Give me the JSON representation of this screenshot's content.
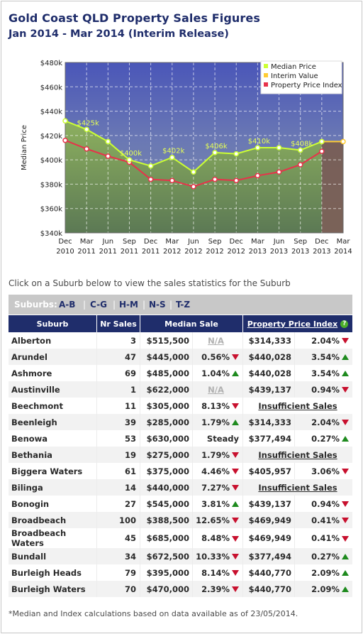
{
  "header": {
    "title": "Gold Coast QLD Property Sales Figures",
    "subtitle": "Jan 2014 - Mar 2014 (Interim Release)"
  },
  "chart_data": {
    "type": "line",
    "ylabel": "Median Price",
    "ylim": [
      340000,
      480000
    ],
    "yticks": [
      "$340k",
      "$360k",
      "$380k",
      "$400k",
      "$420k",
      "$440k",
      "$460k",
      "$480k"
    ],
    "xticks": [
      [
        "Dec",
        "2010"
      ],
      [
        "Mar",
        "2011"
      ],
      [
        "Jun",
        "2011"
      ],
      [
        "Sep",
        "2011"
      ],
      [
        "Dec",
        "2011"
      ],
      [
        "Mar",
        "2012"
      ],
      [
        "Jun",
        "2012"
      ],
      [
        "Sep",
        "2012"
      ],
      [
        "Dec",
        "2012"
      ],
      [
        "Mar",
        "2013"
      ],
      [
        "Jun",
        "2013"
      ],
      [
        "Sep",
        "2013"
      ],
      [
        "Dec",
        "2013"
      ],
      [
        "Mar",
        "2014"
      ]
    ],
    "legend": {
      "position": "top-right",
      "entries": [
        "Median Price",
        "Interim Value",
        "Property Price Index"
      ]
    },
    "series": [
      {
        "name": "Median Price",
        "color": "#ccff33",
        "values": [
          432000,
          425000,
          415000,
          400000,
          395000,
          402000,
          390000,
          406000,
          405000,
          410000,
          410000,
          408000,
          415000,
          null
        ]
      },
      {
        "name": "Interim Value",
        "color": "#ffcc33",
        "values": [
          null,
          null,
          null,
          null,
          null,
          null,
          null,
          null,
          null,
          null,
          null,
          null,
          415000,
          415000
        ]
      },
      {
        "name": "Property Price Index",
        "color": "#e8324a",
        "values": [
          416000,
          409000,
          403000,
          398000,
          384000,
          383000,
          378000,
          384000,
          383000,
          387000,
          390000,
          396000,
          407000,
          null
        ]
      }
    ],
    "data_labels": [
      {
        "index": 1,
        "text": "$425k"
      },
      {
        "index": 3,
        "text": "$400k"
      },
      {
        "index": 5,
        "text": "$402k"
      },
      {
        "index": 7,
        "text": "$406k"
      },
      {
        "index": 9,
        "text": "$410k"
      },
      {
        "index": 11,
        "text": "$408k"
      }
    ],
    "grid": true,
    "interim_start_index": 12
  },
  "instructions": "Click on a Suburb below to view the sales statistics for the Suburb",
  "suburb_nav": {
    "label": "Suburbs:",
    "links": [
      "A-B",
      "C-G",
      "H-M",
      "N-S",
      "T-Z"
    ]
  },
  "table": {
    "headers": {
      "suburb": "Suburb",
      "nr_sales": "Nr Sales",
      "median_sale": "Median Sale",
      "ppi": "Property Price Index"
    },
    "rows": [
      {
        "suburb": "Alberton",
        "nr": "3",
        "median": "$515,500",
        "mchg": "N/A",
        "mdir": "na",
        "ppi": "$314,333",
        "pchg": "2.04%",
        "pdir": "down"
      },
      {
        "suburb": "Arundel",
        "nr": "47",
        "median": "$445,000",
        "mchg": "0.56%",
        "mdir": "down",
        "ppi": "$440,028",
        "pchg": "3.54%",
        "pdir": "up"
      },
      {
        "suburb": "Ashmore",
        "nr": "69",
        "median": "$485,000",
        "mchg": "1.04%",
        "mdir": "up",
        "ppi": "$440,028",
        "pchg": "3.54%",
        "pdir": "up"
      },
      {
        "suburb": "Austinville",
        "nr": "1",
        "median": "$622,000",
        "mchg": "N/A",
        "mdir": "na",
        "ppi": "$439,137",
        "pchg": "0.94%",
        "pdir": "down"
      },
      {
        "suburb": "Beechmont",
        "nr": "11",
        "median": "$305,000",
        "mchg": "8.13%",
        "mdir": "down",
        "ppi": "Insufficient Sales",
        "pchg": "",
        "pdir": "insuff"
      },
      {
        "suburb": "Beenleigh",
        "nr": "39",
        "median": "$285,000",
        "mchg": "1.79%",
        "mdir": "up",
        "ppi": "$314,333",
        "pchg": "2.04%",
        "pdir": "down"
      },
      {
        "suburb": "Benowa",
        "nr": "53",
        "median": "$630,000",
        "mchg": "Steady",
        "mdir": "steady",
        "ppi": "$377,494",
        "pchg": "0.27%",
        "pdir": "up"
      },
      {
        "suburb": "Bethania",
        "nr": "19",
        "median": "$275,000",
        "mchg": "1.79%",
        "mdir": "down",
        "ppi": "Insufficient Sales",
        "pchg": "",
        "pdir": "insuff"
      },
      {
        "suburb": "Biggera Waters",
        "nr": "61",
        "median": "$375,000",
        "mchg": "4.46%",
        "mdir": "down",
        "ppi": "$405,957",
        "pchg": "3.06%",
        "pdir": "down"
      },
      {
        "suburb": "Bilinga",
        "nr": "14",
        "median": "$440,000",
        "mchg": "7.27%",
        "mdir": "down",
        "ppi": "Insufficient Sales",
        "pchg": "",
        "pdir": "insuff"
      },
      {
        "suburb": "Bonogin",
        "nr": "27",
        "median": "$545,000",
        "mchg": "3.81%",
        "mdir": "up",
        "ppi": "$439,137",
        "pchg": "0.94%",
        "pdir": "down"
      },
      {
        "suburb": "Broadbeach",
        "nr": "100",
        "median": "$388,500",
        "mchg": "12.65%",
        "mdir": "down",
        "ppi": "$469,949",
        "pchg": "0.41%",
        "pdir": "down"
      },
      {
        "suburb": "Broadbeach Waters",
        "nr": "45",
        "median": "$685,000",
        "mchg": "8.48%",
        "mdir": "down",
        "ppi": "$469,949",
        "pchg": "0.41%",
        "pdir": "down"
      },
      {
        "suburb": "Bundall",
        "nr": "34",
        "median": "$672,500",
        "mchg": "10.33%",
        "mdir": "down",
        "ppi": "$377,494",
        "pchg": "0.27%",
        "pdir": "up"
      },
      {
        "suburb": "Burleigh Heads",
        "nr": "79",
        "median": "$395,000",
        "mchg": "8.14%",
        "mdir": "down",
        "ppi": "$440,770",
        "pchg": "2.09%",
        "pdir": "up"
      },
      {
        "suburb": "Burleigh Waters",
        "nr": "70",
        "median": "$470,000",
        "mchg": "2.39%",
        "mdir": "down",
        "ppi": "$440,770",
        "pchg": "2.09%",
        "pdir": "up"
      }
    ]
  },
  "footnote": "*Median and Index calculations based on data available as of 23/05/2014."
}
